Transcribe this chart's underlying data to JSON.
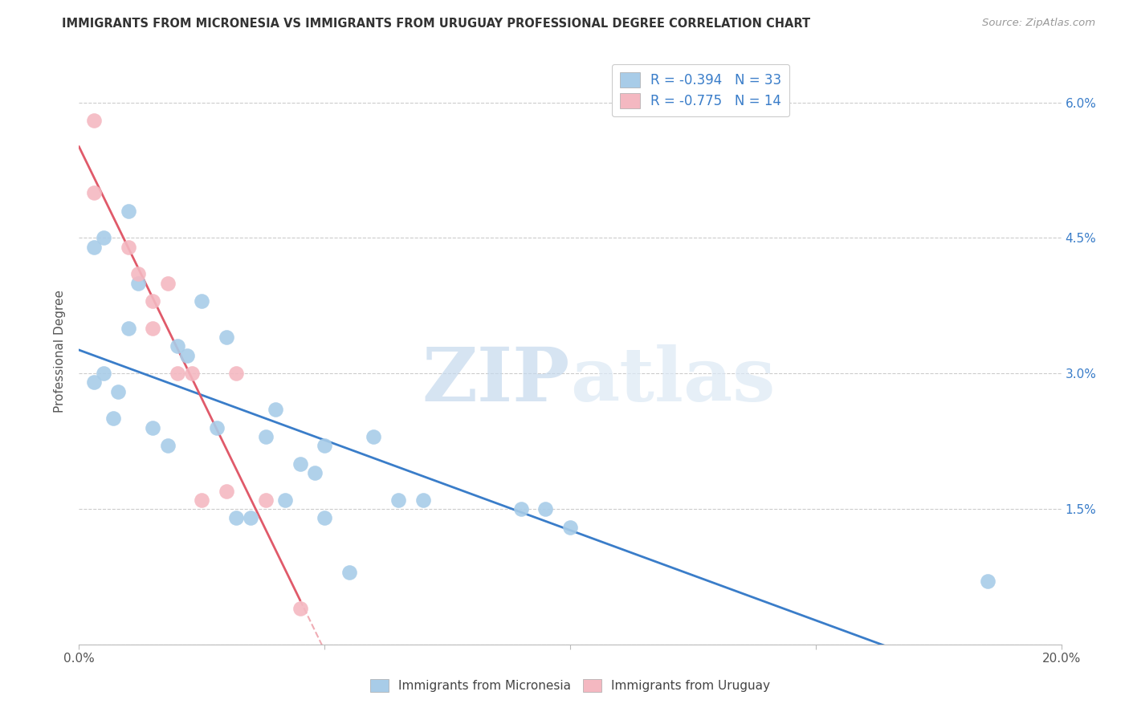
{
  "title": "IMMIGRANTS FROM MICRONESIA VS IMMIGRANTS FROM URUGUAY PROFESSIONAL DEGREE CORRELATION CHART",
  "source": "Source: ZipAtlas.com",
  "ylabel_label": "Professional Degree",
  "xmin": 0.0,
  "xmax": 0.2,
  "ymin": 0.0,
  "ymax": 0.065,
  "yticks": [
    0.0,
    0.015,
    0.03,
    0.045,
    0.06
  ],
  "ytick_labels": [
    "",
    "1.5%",
    "3.0%",
    "4.5%",
    "6.0%"
  ],
  "xticks": [
    0.0,
    0.05,
    0.1,
    0.15,
    0.2
  ],
  "xtick_labels": [
    "0.0%",
    "",
    "",
    "",
    "20.0%"
  ],
  "blue_color": "#a8cce8",
  "pink_color": "#f4b8c1",
  "blue_line_color": "#3a7dc9",
  "pink_line_color": "#e05a6a",
  "legend_R_blue": "R = -0.394",
  "legend_N_blue": "N = 33",
  "legend_R_pink": "R = -0.775",
  "legend_N_pink": "N = 14",
  "blue_x": [
    0.005,
    0.01,
    0.005,
    0.003,
    0.008,
    0.012,
    0.01,
    0.007,
    0.003,
    0.015,
    0.018,
    0.02,
    0.022,
    0.025,
    0.028,
    0.03,
    0.032,
    0.035,
    0.038,
    0.04,
    0.042,
    0.045,
    0.048,
    0.05,
    0.05,
    0.055,
    0.06,
    0.065,
    0.07,
    0.09,
    0.095,
    0.1,
    0.185
  ],
  "blue_y": [
    0.03,
    0.048,
    0.045,
    0.029,
    0.028,
    0.04,
    0.035,
    0.025,
    0.044,
    0.024,
    0.022,
    0.033,
    0.032,
    0.038,
    0.024,
    0.034,
    0.014,
    0.014,
    0.023,
    0.026,
    0.016,
    0.02,
    0.019,
    0.014,
    0.022,
    0.008,
    0.023,
    0.016,
    0.016,
    0.015,
    0.015,
    0.013,
    0.007
  ],
  "pink_x": [
    0.003,
    0.003,
    0.01,
    0.012,
    0.015,
    0.015,
    0.018,
    0.02,
    0.023,
    0.025,
    0.03,
    0.032,
    0.038,
    0.045
  ],
  "pink_y": [
    0.058,
    0.05,
    0.044,
    0.041,
    0.038,
    0.035,
    0.04,
    0.03,
    0.03,
    0.016,
    0.017,
    0.03,
    0.016,
    0.004
  ],
  "watermark_zip": "ZIP",
  "watermark_atlas": "atlas",
  "bg_color": "#ffffff",
  "grid_color": "#cccccc"
}
